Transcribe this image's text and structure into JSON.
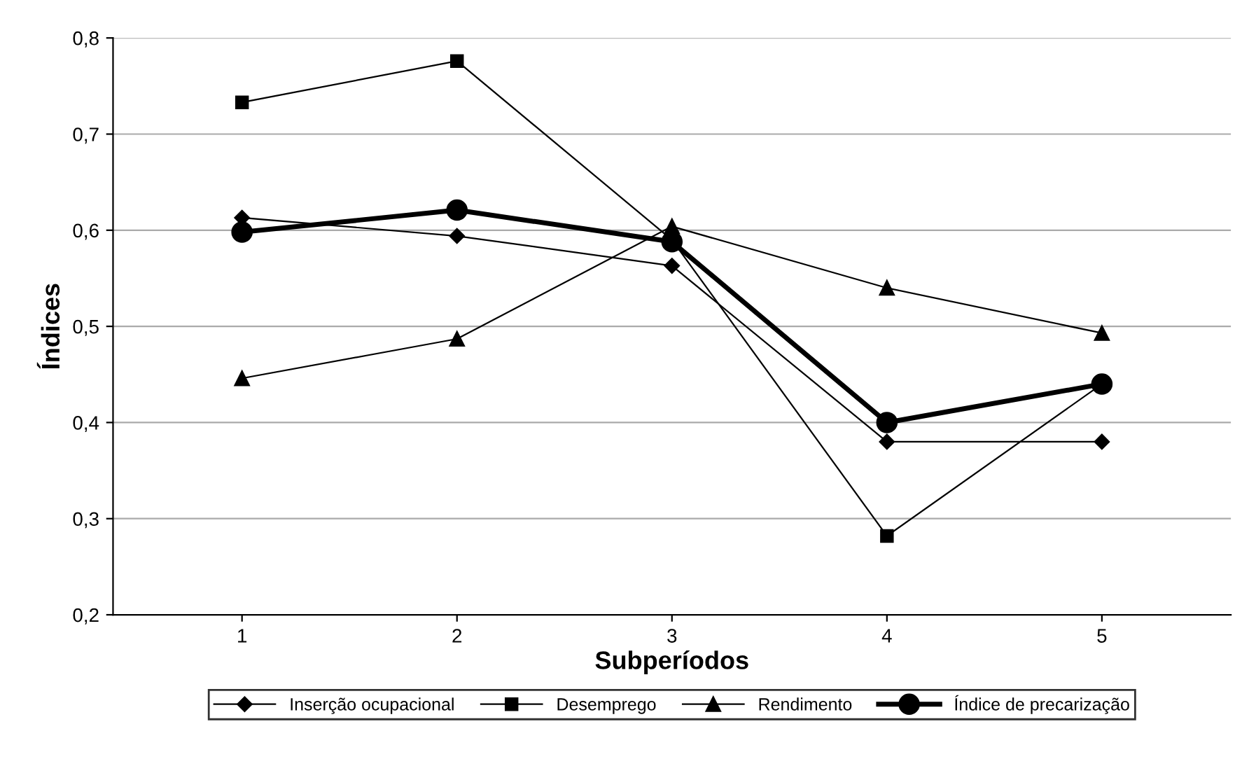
{
  "chart_data": {
    "type": "line",
    "xlabel": "Subperíodos",
    "ylabel": "Índices",
    "categories": [
      "1",
      "2",
      "3",
      "4",
      "5"
    ],
    "ylim": [
      0.2,
      0.8
    ],
    "yticks": [
      {
        "value": 0.2,
        "label": "0,2"
      },
      {
        "value": 0.3,
        "label": "0,3"
      },
      {
        "value": 0.4,
        "label": "0,4"
      },
      {
        "value": 0.5,
        "label": "0,5"
      },
      {
        "value": 0.6,
        "label": "0,6"
      },
      {
        "value": 0.7,
        "label": "0,7"
      },
      {
        "value": 0.8,
        "label": "0,8"
      }
    ],
    "grid": "y",
    "legend": "bottom",
    "series": [
      {
        "name": "Inserção ocupacional",
        "color": "#000000",
        "marker": "diamond",
        "values": [
          0.613,
          0.594,
          0.563,
          0.38,
          0.38
        ]
      },
      {
        "name": "Desemprego",
        "color": "#000000",
        "marker": "square",
        "values": [
          0.733,
          0.776,
          0.59,
          0.282,
          0.44
        ]
      },
      {
        "name": "Rendimento",
        "color": "#000000",
        "marker": "triangle",
        "values": [
          0.446,
          0.487,
          0.604,
          0.54,
          0.493
        ]
      },
      {
        "name": "Índice de precarização",
        "color": "#000000",
        "marker": "circle",
        "values": [
          0.598,
          0.621,
          0.588,
          0.4,
          0.44
        ]
      }
    ]
  }
}
